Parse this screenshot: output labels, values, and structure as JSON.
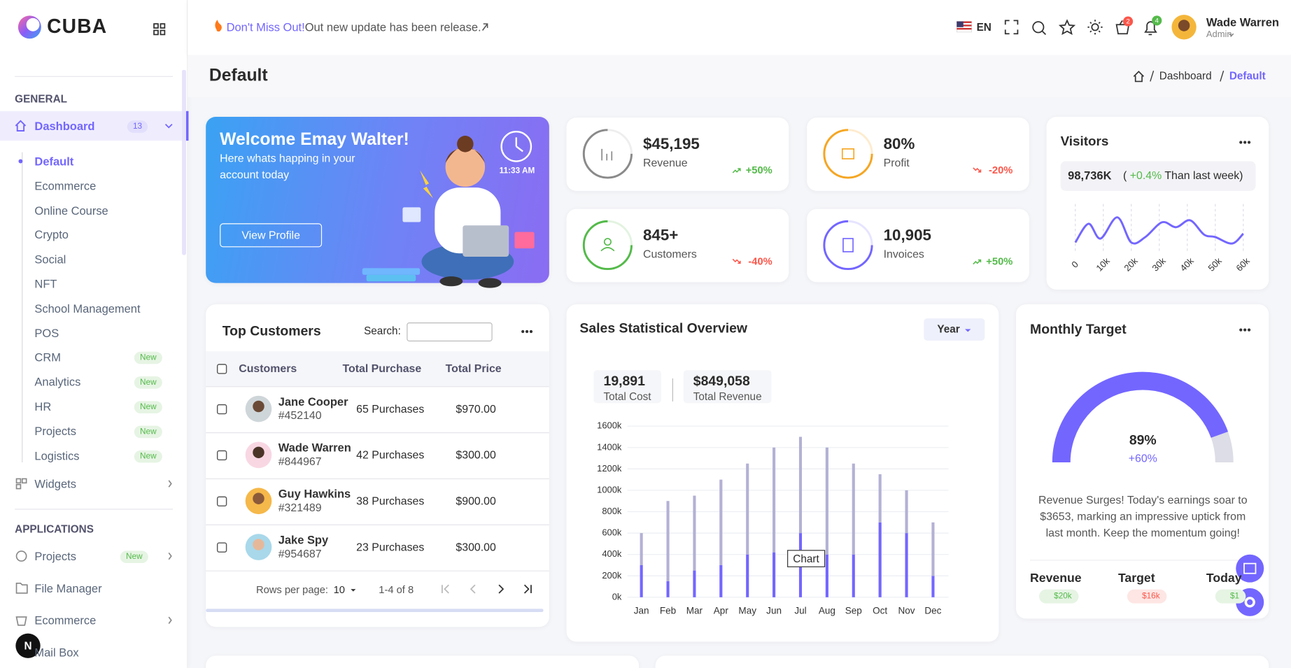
{
  "header": {
    "brand": "CUBA",
    "notice_highlight": "Don't Miss Out!",
    "notice_text": "Out new update has been release.",
    "language": "EN",
    "cart_count": "2",
    "notification_count": "4",
    "user_name": "Wade Warren",
    "user_role": "Admin"
  },
  "sidebar": {
    "general_title": "GENERAL",
    "dashboard": {
      "label": "Dashboard",
      "badge": "13"
    },
    "dashboard_items": [
      {
        "label": "Default"
      },
      {
        "label": "Ecommerce"
      },
      {
        "label": "Online Course"
      },
      {
        "label": "Crypto"
      },
      {
        "label": "Social"
      },
      {
        "label": "NFT"
      },
      {
        "label": "School Management"
      },
      {
        "label": "POS"
      },
      {
        "label": "CRM",
        "badge": "New"
      },
      {
        "label": "Analytics",
        "badge": "New"
      },
      {
        "label": "HR",
        "badge": "New"
      },
      {
        "label": "Projects",
        "badge": "New"
      },
      {
        "label": "Logistics",
        "badge": "New"
      }
    ],
    "widgets": "Widgets",
    "applications_title": "APPLICATIONS",
    "applications": [
      {
        "label": "Projects",
        "badge": "New"
      },
      {
        "label": "File Manager"
      },
      {
        "label": "Ecommerce"
      },
      {
        "label": "Mail Box"
      }
    ]
  },
  "dev_indicator": "N",
  "page": {
    "title": "Default",
    "breadcrumb": [
      "Dashboard",
      "Default"
    ]
  },
  "welcome": {
    "title": "Welcome Emay Walter!",
    "text": "Here whats happing in your account today",
    "button": "View Profile",
    "time": "11:33 AM"
  },
  "stats": [
    {
      "value": "$45,195",
      "label": "Revenue",
      "change": "+50%",
      "trend": "up"
    },
    {
      "value": "80%",
      "label": "Profit",
      "change": "-20%",
      "trend": "down"
    },
    {
      "value": "845+",
      "label": "Customers",
      "change": "-40%",
      "trend": "down"
    },
    {
      "value": "10,905",
      "label": "Invoices",
      "change": "+50%",
      "trend": "up"
    }
  ],
  "visitors": {
    "title": "Visitors",
    "total": "98,736K",
    "change_parts": [
      "( ",
      "+0.4%",
      " Than last week)"
    ],
    "chart_data": {
      "type": "line",
      "color": "#7366ff",
      "x": [
        0,
        4700,
        9000,
        15000,
        20000,
        25000,
        31000,
        36000,
        41000,
        46000,
        50000,
        56000,
        60000
      ],
      "values": [
        17,
        55,
        25,
        68,
        17,
        28,
        58,
        48,
        62,
        33,
        28,
        15,
        35
      ],
      "xlim": [
        0,
        60000
      ],
      "ylim": [
        0,
        100
      ],
      "xticks": [
        0,
        {
          "value": 10000,
          "label": "10k"
        },
        {
          "value": 20000,
          "label": "20k"
        },
        {
          "value": 30000,
          "label": "30k"
        },
        {
          "value": 40000,
          "label": "40k"
        },
        {
          "value": 50000,
          "label": "50k"
        },
        {
          "value": 60000,
          "label": "60k"
        }
      ]
    }
  },
  "customers": {
    "title": "Top Customers",
    "search_label": "Search:",
    "columns": [
      "Customers",
      "Total Purchase",
      "Total Price"
    ],
    "rows": [
      {
        "name": "Jane Cooper",
        "id": "#452140",
        "purchases": "65 Purchases",
        "price": "$970.00"
      },
      {
        "name": "Wade Warren",
        "id": "#844967",
        "purchases": "42 Purchases",
        "price": "$300.00"
      },
      {
        "name": "Guy Hawkins",
        "id": "#321489",
        "purchases": "38 Purchases",
        "price": "$900.00"
      },
      {
        "name": "Jake Spy",
        "id": "#954687",
        "purchases": "23 Purchases",
        "price": "$300.00"
      }
    ],
    "rows_per_page_label": "Rows per page:",
    "rows_per_page": "10",
    "range": "1-4 of 8"
  },
  "sales": {
    "title": "Sales Statistical Overview",
    "period": "Year",
    "summary": [
      {
        "value": "19,891",
        "label": "Total Cost"
      },
      {
        "value": "$849,058",
        "label": "Total Revenue"
      }
    ],
    "tooltip": "Chart",
    "chart_data": {
      "type": "bar",
      "stacked": true,
      "grid": true,
      "categories": [
        "Jan",
        "Feb",
        "Mar",
        "Apr",
        "May",
        "Jun",
        "Jul",
        "Aug",
        "Sep",
        "Oct",
        "Nov",
        "Dec"
      ],
      "series": [
        {
          "color": "#7366ff",
          "values": [
            300000,
            150000,
            250000,
            300000,
            400000,
            420000,
            600000,
            400000,
            400000,
            700000,
            600000,
            200000
          ]
        },
        {
          "color": "#b3b1d4",
          "values": [
            300000,
            750000,
            700000,
            800000,
            850000,
            980000,
            900000,
            1000000,
            850000,
            450000,
            400000,
            500000
          ]
        }
      ],
      "ylim": [
        0,
        1600000
      ],
      "yticks": [
        {
          "value": 0,
          "label": "0k"
        },
        {
          "value": 200000,
          "label": "200k"
        },
        {
          "value": 400000,
          "label": "400k"
        },
        {
          "value": 600000,
          "label": "600k"
        },
        {
          "value": 800000,
          "label": "800k"
        },
        {
          "value": 1000000,
          "label": "1000k"
        },
        {
          "value": 1200000,
          "label": "1200k"
        },
        {
          "value": 1400000,
          "label": "1400k"
        },
        {
          "value": 1600000,
          "label": "1600k"
        }
      ]
    }
  },
  "target": {
    "title": "Monthly Target",
    "chart_data": {
      "type": "gauge",
      "value": 89,
      "value_label": "89%",
      "ylim": [
        0,
        100
      ],
      "color": "#7366ff",
      "track_color": "#dcdde6"
    },
    "change": "+60%",
    "description": "Revenue Surges! Today's earnings soar to $3653, marking an impressive uptick from last month. Keep the momentum going!",
    "metrics": [
      {
        "label": "Revenue",
        "value": "$20k",
        "trend": "up"
      },
      {
        "label": "Target",
        "value": "$16k",
        "trend": "down"
      },
      {
        "label": "Today",
        "value": "$1",
        "trend": "up"
      }
    ]
  }
}
